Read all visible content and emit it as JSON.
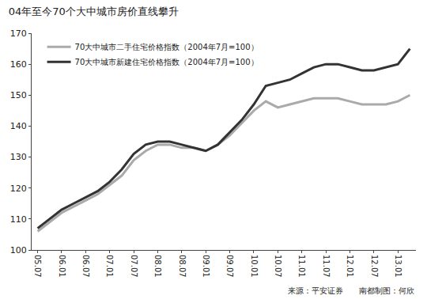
{
  "chart_data": {
    "type": "line",
    "title": "04年至今70个大中城市房价直线攀升",
    "categories": [
      "05.07",
      null,
      "06.01",
      null,
      "06.07",
      null,
      "07.01",
      null,
      "07.07",
      null,
      "08.01",
      null,
      "08.07",
      null,
      "09.01",
      null,
      "09.07",
      null,
      "10.01",
      null,
      "10.07",
      null,
      "11.01",
      null,
      "11.07",
      null,
      "12.01",
      null,
      "12.07",
      null,
      "13.01",
      null
    ],
    "series": [
      {
        "name": "70大中城市二手住宅价格指数（2004年7月=100）",
        "color": "#aaaaaa",
        "values": [
          106,
          109,
          112,
          114,
          116,
          118,
          121,
          124,
          129,
          132,
          134,
          134,
          133,
          133,
          132,
          134,
          137,
          141,
          145,
          148,
          146,
          147,
          148,
          149,
          149,
          149,
          148,
          147,
          147,
          147,
          148,
          150
        ]
      },
      {
        "name": "70大中城市新建住宅价格指数（2004年7月=100）",
        "color": "#333333",
        "values": [
          107,
          110,
          113,
          115,
          117,
          119,
          122,
          126,
          131,
          134,
          135,
          135,
          134,
          133,
          132,
          134,
          138,
          142,
          147,
          153,
          154,
          155,
          157,
          159,
          160,
          160,
          159,
          158,
          158,
          159,
          160,
          165
        ]
      }
    ],
    "ylim": [
      100,
      170
    ],
    "yticks": [
      100,
      110,
      120,
      130,
      140,
      150,
      160,
      170
    ],
    "grid": false,
    "legend": "upper left",
    "annotations": [
      "来源：平安证券",
      "南都制图：何欣"
    ]
  }
}
